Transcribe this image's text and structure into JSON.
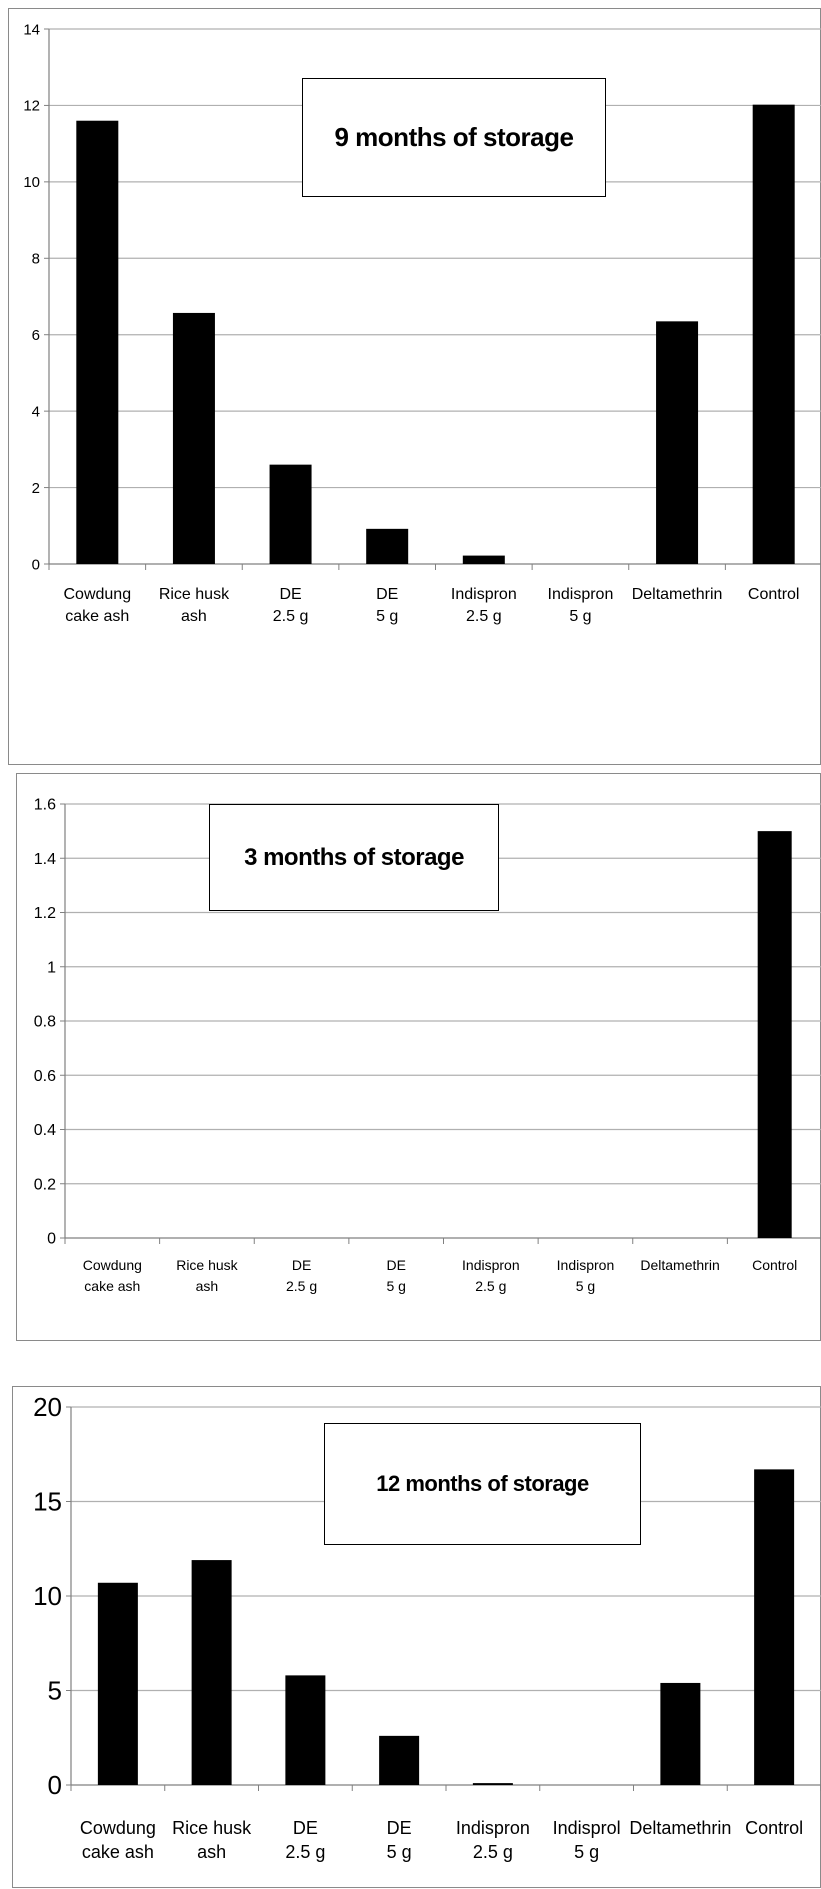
{
  "bar_color": "#000000",
  "grid_color": "#b0b0b0",
  "chart_data": [
    {
      "type": "bar",
      "title": "9 months of storage",
      "categories": [
        [
          "Cowdung",
          "cake ash"
        ],
        [
          "Rice husk",
          "ash"
        ],
        [
          "DE",
          "2.5 g"
        ],
        [
          "DE",
          "5 g"
        ],
        [
          "Indispron",
          "2.5 g"
        ],
        [
          "Indispron",
          "5 g"
        ],
        [
          "Deltamethrin"
        ],
        [
          "Control"
        ]
      ],
      "values": [
        11.6,
        6.57,
        2.6,
        0.92,
        0.22,
        0,
        6.35,
        12.02
      ],
      "ylim": [
        0,
        14
      ],
      "yticks": [
        0,
        2,
        4,
        6,
        8,
        10,
        12,
        14
      ],
      "tick_labels": [
        "0",
        "2",
        "4",
        "6",
        "8",
        "10",
        "12",
        "14"
      ],
      "xlabel": "",
      "ylabel": "",
      "grid": true,
      "legend": "none"
    },
    {
      "type": "bar",
      "title": "3 months of storage",
      "categories": [
        [
          "Cowdung",
          "cake ash"
        ],
        [
          "Rice husk",
          "ash"
        ],
        [
          "DE",
          "2.5 g"
        ],
        [
          "DE",
          "5 g"
        ],
        [
          "Indispron",
          "2.5 g"
        ],
        [
          "Indispron",
          "5 g"
        ],
        [
          "Deltamethrin"
        ],
        [
          "Control"
        ]
      ],
      "values": [
        0,
        0,
        0,
        0,
        0,
        0,
        0,
        1.5
      ],
      "ylim": [
        0,
        1.6
      ],
      "yticks": [
        0,
        0.2,
        0.4,
        0.6,
        0.8,
        1.0,
        1.2,
        1.4,
        1.6
      ],
      "tick_labels": [
        "0",
        "0.2",
        "0.4",
        "0.6",
        "0.8",
        "1",
        "1.2",
        "1.4",
        "1.6"
      ],
      "xlabel": "",
      "ylabel": "",
      "grid": true,
      "legend": "none"
    },
    {
      "type": "bar",
      "title": "12 months of storage",
      "categories": [
        [
          "Cowdung",
          "cake ash"
        ],
        [
          "Rice husk",
          "ash"
        ],
        [
          "DE",
          "2.5 g"
        ],
        [
          "DE",
          "5 g"
        ],
        [
          "Indispron",
          "2.5 g"
        ],
        [
          "Indisprol",
          "5 g"
        ],
        [
          "Deltamethrin"
        ],
        [
          "Control"
        ]
      ],
      "values": [
        10.7,
        11.9,
        5.8,
        2.6,
        0.1,
        0,
        5.4,
        16.7
      ],
      "ylim": [
        0,
        20
      ],
      "yticks": [
        0,
        5,
        10,
        15,
        20
      ],
      "tick_labels": [
        "0",
        "5",
        "10",
        "15",
        "20"
      ],
      "xlabel": "",
      "ylabel": "",
      "grid": true,
      "legend": "none"
    }
  ]
}
